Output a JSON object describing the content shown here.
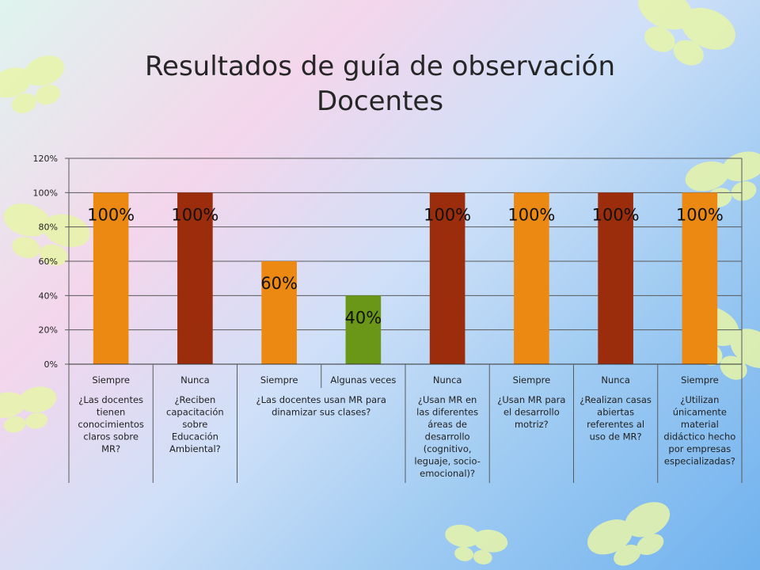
{
  "title": {
    "line1": "Resultados de guía de observación",
    "line2": "Docentes"
  },
  "colors": {
    "orange": "#EC8913",
    "dark_red": "#9B2D0C",
    "green": "#6A9718",
    "grid": "#5a5a5a"
  },
  "chart_data": {
    "type": "bar",
    "ylim": [
      0,
      1.2
    ],
    "yticks": [
      "0%",
      "20%",
      "40%",
      "60%",
      "80%",
      "100%",
      "120%"
    ],
    "grid": true,
    "categories": [
      "Siempre",
      "Nunca",
      "Siempre",
      "Algunas veces",
      "Nunca",
      "Siempre",
      "Nunca",
      "Siempre"
    ],
    "values": [
      1.0,
      1.0,
      0.6,
      0.4,
      1.0,
      1.0,
      1.0,
      1.0
    ],
    "data_labels": [
      "100%",
      "100%",
      "60%",
      "40%",
      "100%",
      "100%",
      "100%",
      "100%"
    ],
    "bar_colors": [
      "#EC8913",
      "#9B2D0C",
      "#EC8913",
      "#6A9718",
      "#9B2D0C",
      "#EC8913",
      "#9B2D0C",
      "#EC8913"
    ],
    "groups": [
      {
        "span": [
          0,
          0
        ],
        "lines": [
          "¿Las docentes",
          "tienen",
          "conocimientos",
          "claros sobre",
          "MR?"
        ]
      },
      {
        "span": [
          1,
          1
        ],
        "lines": [
          "¿Reciben",
          "capacitación",
          "sobre",
          "Educación",
          "Ambiental?"
        ]
      },
      {
        "span": [
          2,
          3
        ],
        "lines": [
          "¿Las docentes usan MR para",
          "dinamizar sus clases?"
        ]
      },
      {
        "span": [
          4,
          4
        ],
        "lines": [
          "¿Usan MR en",
          "las diferentes",
          "áreas de",
          "desarrollo",
          "(cognitivo,",
          "leguaje, socio-",
          "emocional)?"
        ]
      },
      {
        "span": [
          5,
          5
        ],
        "lines": [
          "¿Usan MR para",
          "el desarrollo",
          "motriz?"
        ]
      },
      {
        "span": [
          6,
          6
        ],
        "lines": [
          "¿Realizan casas",
          "abiertas",
          "referentes al",
          "uso de MR?"
        ]
      },
      {
        "span": [
          7,
          7
        ],
        "lines": [
          "¿Utilizan",
          "únicamente",
          "material",
          "didáctico hecho",
          "por empresas",
          "especializadas?"
        ]
      }
    ]
  }
}
